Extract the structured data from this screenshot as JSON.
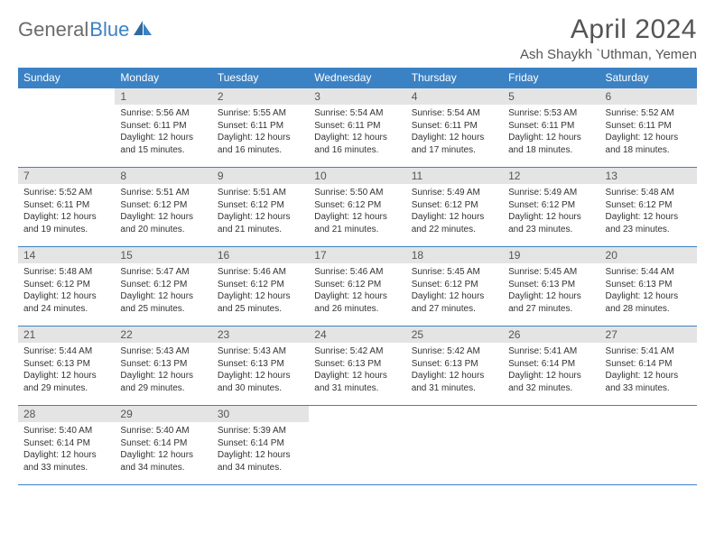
{
  "logo": {
    "text_gray": "General",
    "text_blue": "Blue"
  },
  "title": "April 2024",
  "location": "Ash Shaykh `Uthman, Yemen",
  "colors": {
    "header_bg": "#3b82c4",
    "header_text": "#ffffff",
    "daynum_bg": "#e4e4e4",
    "border": "#3b82c4",
    "body_text": "#333333",
    "title_text": "#555555"
  },
  "weekdays": [
    "Sunday",
    "Monday",
    "Tuesday",
    "Wednesday",
    "Thursday",
    "Friday",
    "Saturday"
  ],
  "weeks": [
    [
      {
        "n": "",
        "sr": "",
        "ss": "",
        "dl": ""
      },
      {
        "n": "1",
        "sr": "Sunrise: 5:56 AM",
        "ss": "Sunset: 6:11 PM",
        "dl": "Daylight: 12 hours and 15 minutes."
      },
      {
        "n": "2",
        "sr": "Sunrise: 5:55 AM",
        "ss": "Sunset: 6:11 PM",
        "dl": "Daylight: 12 hours and 16 minutes."
      },
      {
        "n": "3",
        "sr": "Sunrise: 5:54 AM",
        "ss": "Sunset: 6:11 PM",
        "dl": "Daylight: 12 hours and 16 minutes."
      },
      {
        "n": "4",
        "sr": "Sunrise: 5:54 AM",
        "ss": "Sunset: 6:11 PM",
        "dl": "Daylight: 12 hours and 17 minutes."
      },
      {
        "n": "5",
        "sr": "Sunrise: 5:53 AM",
        "ss": "Sunset: 6:11 PM",
        "dl": "Daylight: 12 hours and 18 minutes."
      },
      {
        "n": "6",
        "sr": "Sunrise: 5:52 AM",
        "ss": "Sunset: 6:11 PM",
        "dl": "Daylight: 12 hours and 18 minutes."
      }
    ],
    [
      {
        "n": "7",
        "sr": "Sunrise: 5:52 AM",
        "ss": "Sunset: 6:11 PM",
        "dl": "Daylight: 12 hours and 19 minutes."
      },
      {
        "n": "8",
        "sr": "Sunrise: 5:51 AM",
        "ss": "Sunset: 6:12 PM",
        "dl": "Daylight: 12 hours and 20 minutes."
      },
      {
        "n": "9",
        "sr": "Sunrise: 5:51 AM",
        "ss": "Sunset: 6:12 PM",
        "dl": "Daylight: 12 hours and 21 minutes."
      },
      {
        "n": "10",
        "sr": "Sunrise: 5:50 AM",
        "ss": "Sunset: 6:12 PM",
        "dl": "Daylight: 12 hours and 21 minutes."
      },
      {
        "n": "11",
        "sr": "Sunrise: 5:49 AM",
        "ss": "Sunset: 6:12 PM",
        "dl": "Daylight: 12 hours and 22 minutes."
      },
      {
        "n": "12",
        "sr": "Sunrise: 5:49 AM",
        "ss": "Sunset: 6:12 PM",
        "dl": "Daylight: 12 hours and 23 minutes."
      },
      {
        "n": "13",
        "sr": "Sunrise: 5:48 AM",
        "ss": "Sunset: 6:12 PM",
        "dl": "Daylight: 12 hours and 23 minutes."
      }
    ],
    [
      {
        "n": "14",
        "sr": "Sunrise: 5:48 AM",
        "ss": "Sunset: 6:12 PM",
        "dl": "Daylight: 12 hours and 24 minutes."
      },
      {
        "n": "15",
        "sr": "Sunrise: 5:47 AM",
        "ss": "Sunset: 6:12 PM",
        "dl": "Daylight: 12 hours and 25 minutes."
      },
      {
        "n": "16",
        "sr": "Sunrise: 5:46 AM",
        "ss": "Sunset: 6:12 PM",
        "dl": "Daylight: 12 hours and 25 minutes."
      },
      {
        "n": "17",
        "sr": "Sunrise: 5:46 AM",
        "ss": "Sunset: 6:12 PM",
        "dl": "Daylight: 12 hours and 26 minutes."
      },
      {
        "n": "18",
        "sr": "Sunrise: 5:45 AM",
        "ss": "Sunset: 6:12 PM",
        "dl": "Daylight: 12 hours and 27 minutes."
      },
      {
        "n": "19",
        "sr": "Sunrise: 5:45 AM",
        "ss": "Sunset: 6:13 PM",
        "dl": "Daylight: 12 hours and 27 minutes."
      },
      {
        "n": "20",
        "sr": "Sunrise: 5:44 AM",
        "ss": "Sunset: 6:13 PM",
        "dl": "Daylight: 12 hours and 28 minutes."
      }
    ],
    [
      {
        "n": "21",
        "sr": "Sunrise: 5:44 AM",
        "ss": "Sunset: 6:13 PM",
        "dl": "Daylight: 12 hours and 29 minutes."
      },
      {
        "n": "22",
        "sr": "Sunrise: 5:43 AM",
        "ss": "Sunset: 6:13 PM",
        "dl": "Daylight: 12 hours and 29 minutes."
      },
      {
        "n": "23",
        "sr": "Sunrise: 5:43 AM",
        "ss": "Sunset: 6:13 PM",
        "dl": "Daylight: 12 hours and 30 minutes."
      },
      {
        "n": "24",
        "sr": "Sunrise: 5:42 AM",
        "ss": "Sunset: 6:13 PM",
        "dl": "Daylight: 12 hours and 31 minutes."
      },
      {
        "n": "25",
        "sr": "Sunrise: 5:42 AM",
        "ss": "Sunset: 6:13 PM",
        "dl": "Daylight: 12 hours and 31 minutes."
      },
      {
        "n": "26",
        "sr": "Sunrise: 5:41 AM",
        "ss": "Sunset: 6:14 PM",
        "dl": "Daylight: 12 hours and 32 minutes."
      },
      {
        "n": "27",
        "sr": "Sunrise: 5:41 AM",
        "ss": "Sunset: 6:14 PM",
        "dl": "Daylight: 12 hours and 33 minutes."
      }
    ],
    [
      {
        "n": "28",
        "sr": "Sunrise: 5:40 AM",
        "ss": "Sunset: 6:14 PM",
        "dl": "Daylight: 12 hours and 33 minutes."
      },
      {
        "n": "29",
        "sr": "Sunrise: 5:40 AM",
        "ss": "Sunset: 6:14 PM",
        "dl": "Daylight: 12 hours and 34 minutes."
      },
      {
        "n": "30",
        "sr": "Sunrise: 5:39 AM",
        "ss": "Sunset: 6:14 PM",
        "dl": "Daylight: 12 hours and 34 minutes."
      },
      {
        "n": "",
        "sr": "",
        "ss": "",
        "dl": ""
      },
      {
        "n": "",
        "sr": "",
        "ss": "",
        "dl": ""
      },
      {
        "n": "",
        "sr": "",
        "ss": "",
        "dl": ""
      },
      {
        "n": "",
        "sr": "",
        "ss": "",
        "dl": ""
      }
    ]
  ]
}
